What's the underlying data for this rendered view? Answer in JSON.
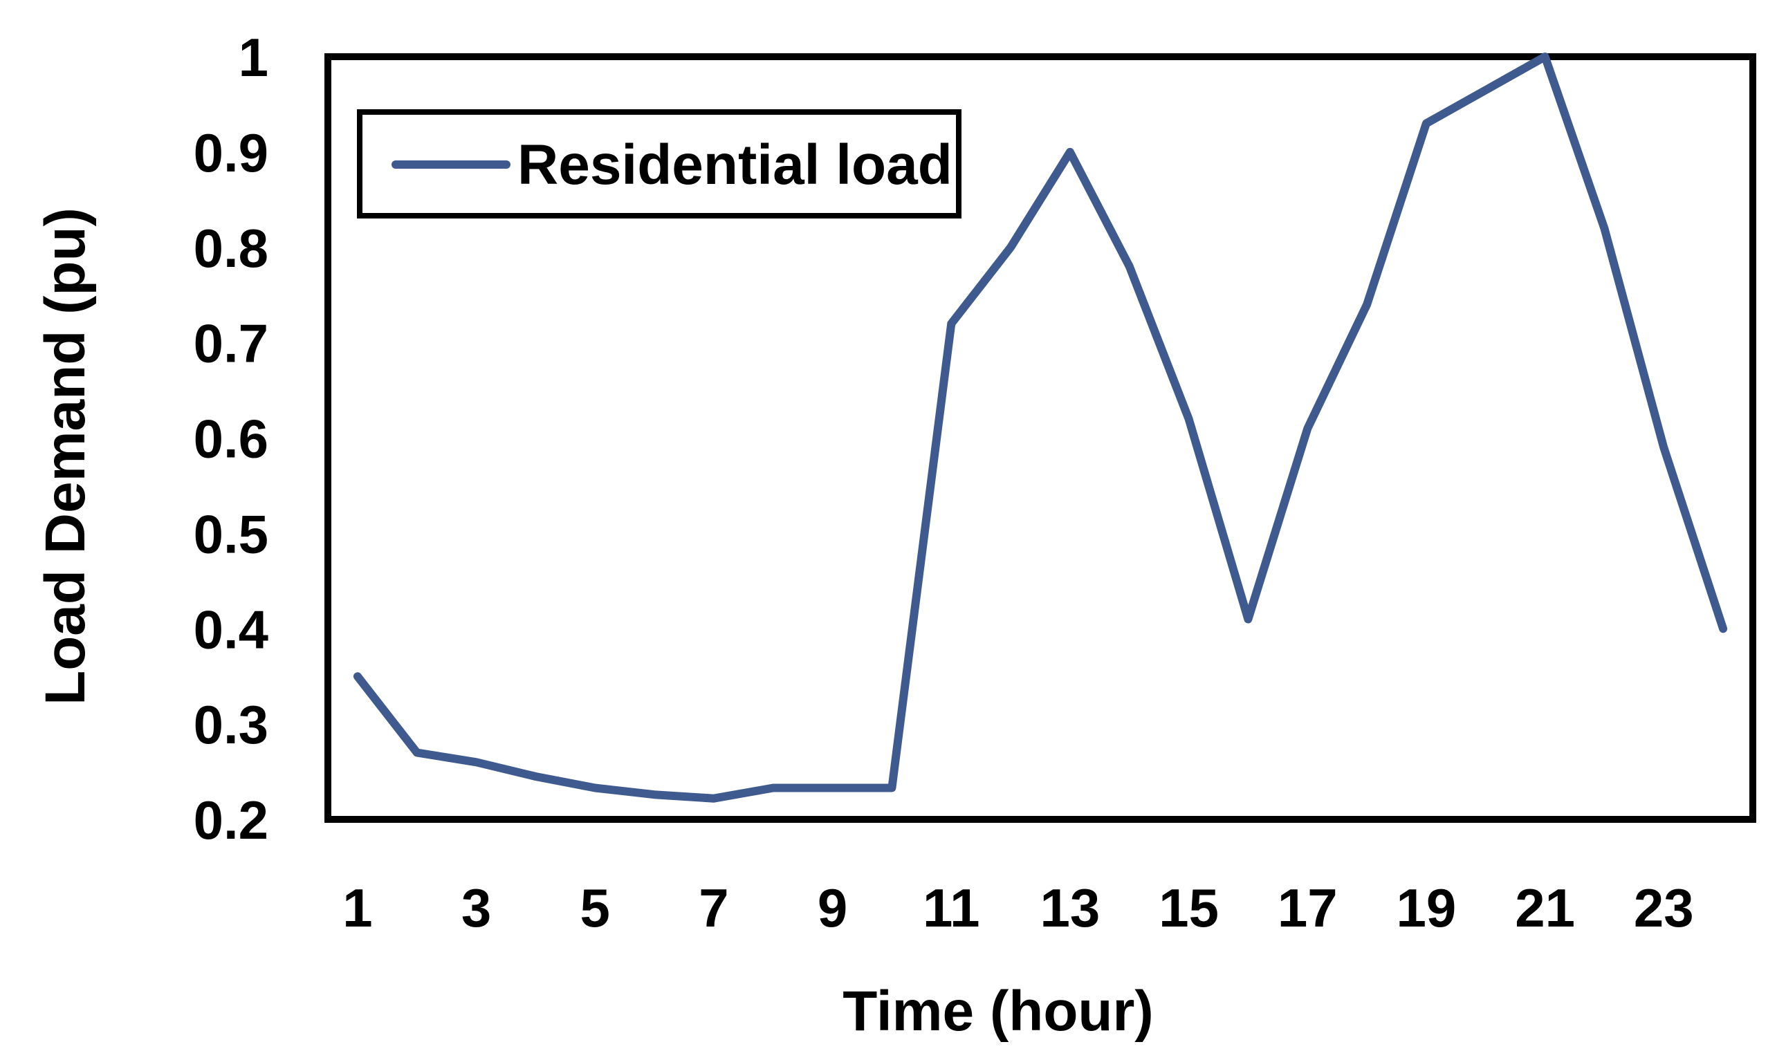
{
  "chart_data": {
    "type": "line",
    "title": "",
    "xlabel": "Time (hour)",
    "ylabel": "Load Demand (pu)",
    "x": [
      1,
      2,
      3,
      4,
      5,
      6,
      7,
      8,
      9,
      10,
      11,
      12,
      13,
      14,
      15,
      16,
      17,
      18,
      19,
      20,
      21,
      22,
      23,
      24
    ],
    "x_ticks": [
      "1",
      "3",
      "5",
      "7",
      "9",
      "11",
      "13",
      "15",
      "17",
      "19",
      "21",
      "23"
    ],
    "y_ticks": [
      "0.2",
      "0.3",
      "0.4",
      "0.5",
      "0.6",
      "0.7",
      "0.8",
      "0.9",
      "1"
    ],
    "xlim": [
      0.5,
      24.5
    ],
    "ylim": [
      0.2,
      1.0
    ],
    "grid": false,
    "legend": "top-left",
    "series": [
      {
        "name": "Residential load",
        "color": "#3f5a8f",
        "values": [
          0.35,
          0.27,
          0.26,
          0.245,
          0.233,
          0.226,
          0.222,
          0.233,
          0.233,
          0.233,
          0.72,
          0.8,
          0.9,
          0.78,
          0.62,
          0.41,
          0.61,
          0.74,
          0.93,
          0.965,
          1.0,
          0.82,
          0.59,
          0.4
        ]
      }
    ]
  }
}
